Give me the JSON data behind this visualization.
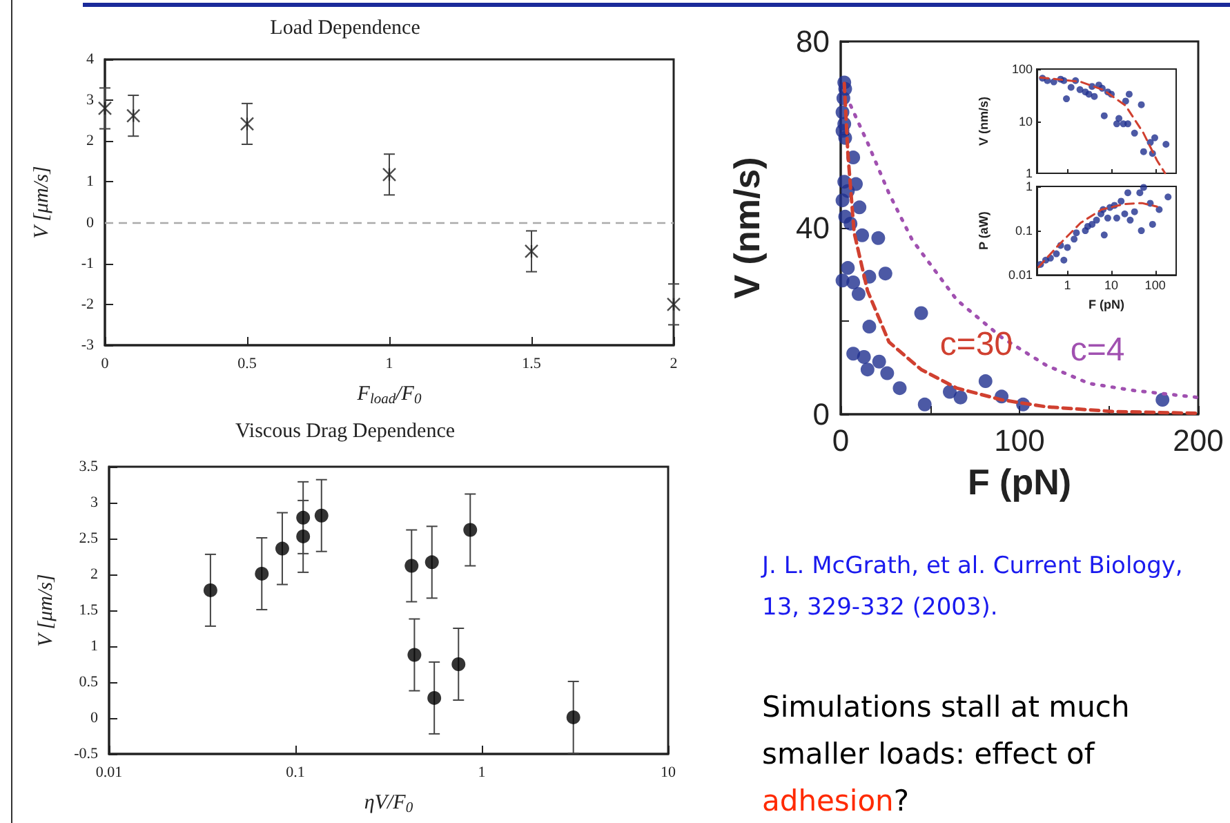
{
  "chart_data": [
    {
      "type": "scatter",
      "title": "Load Dependence",
      "xlabel": "F$_{load}$/F$_{0}$",
      "ylabel": "V [μm/s]",
      "marker": "cross",
      "xlim": [
        0,
        2
      ],
      "xticks": [
        0,
        0.5,
        1,
        1.5,
        2
      ],
      "ylim": [
        -3,
        4
      ],
      "yticks": [
        -3,
        -2,
        -1,
        0,
        1,
        2,
        3,
        4
      ],
      "x": [
        0,
        0.1,
        0.5,
        1,
        1.5,
        2
      ],
      "series": [
        {
          "color": "#222222",
          "values": [
            2.8,
            2.62,
            2.42,
            1.18,
            -0.7,
            -2.0
          ],
          "errors": [
            0.5,
            0.5,
            0.5,
            0.5,
            0.5,
            0.5
          ]
        }
      ],
      "ref_lines": [
        {
          "axis": "y",
          "value": 0,
          "color": "#aaaaaa",
          "line_style": "dashed"
        }
      ]
    },
    {
      "type": "scatter",
      "title": "Viscous Drag Dependence",
      "xlabel": "ηV/F$_{0}$",
      "ylabel": "V [μm/s]",
      "marker": "circle",
      "log": "x",
      "xlim": [
        0.01,
        10
      ],
      "xticks": [
        0.01,
        0.1,
        1,
        10
      ],
      "ylim": [
        -0.5,
        3.5
      ],
      "yticks": [
        -0.5,
        0,
        0.5,
        1,
        1.5,
        2,
        2.5,
        3,
        3.5
      ],
      "x": [
        0.035,
        0.066,
        0.085,
        0.11,
        0.11,
        0.138,
        0.42,
        0.435,
        0.54,
        0.556,
        0.75,
        0.867,
        3.1
      ],
      "series": [
        {
          "color": "#000000",
          "values": [
            1.78,
            2.01,
            2.36,
            2.79,
            2.53,
            2.82,
            2.12,
            0.88,
            2.17,
            0.28,
            0.75,
            2.62,
            0.01
          ],
          "errors": [
            0.5,
            0.5,
            0.5,
            0.5,
            0.5,
            0.5,
            0.5,
            0.5,
            0.5,
            0.5,
            0.5,
            0.5,
            0.5
          ]
        }
      ]
    },
    {
      "type": "scatter",
      "xlabel": "F (pN)",
      "ylabel": "V (nm/s)",
      "marker": "circle",
      "xlim": [
        0,
        200
      ],
      "xticks": [
        0,
        {
          "value": 50,
          "label": null
        },
        100,
        {
          "value": 150,
          "label": null
        },
        200
      ],
      "ylim": [
        0,
        80
      ],
      "yticks": [
        0,
        {
          "value": 20,
          "label": null
        },
        40,
        {
          "value": 60,
          "label": null
        },
        80
      ],
      "series": [
        {
          "color": "#1f2f8f",
          "x": [
            2,
            2.5,
            1.5,
            1,
            2,
            1,
            2.5,
            7,
            2,
            8.5,
            4,
            1,
            10.5,
            2.5,
            5.5,
            12,
            21,
            4,
            25,
            1,
            7,
            16,
            10,
            16,
            45,
            7,
            13,
            15,
            21.5,
            26,
            33,
            47,
            61,
            67,
            81,
            90,
            102,
            180
          ],
          "values": [
            71.2,
            69.8,
            67.8,
            64.8,
            62.3,
            60.8,
            59.3,
            55.1,
            49.9,
            49.4,
            47.9,
            45.9,
            44.4,
            42.4,
            40.9,
            38.4,
            37.8,
            31.4,
            30.2,
            28.7,
            28.3,
            29.5,
            25.8,
            18.8,
            21.7,
            13,
            12.3,
            9.6,
            11.3,
            8.8,
            5.6,
            2.1,
            4.8,
            3.6,
            7.1,
            3.8,
            2.1,
            3.1
          ]
        },
        {
          "type": "line",
          "name": "c=30",
          "color": "#d04030",
          "line_style": "dashed",
          "marker": "none",
          "x": [
            2,
            4,
            7.5,
            15,
            27,
            45,
            65,
            90,
            115,
            152,
            200
          ],
          "values": [
            71,
            56,
            39,
            26.5,
            15.5,
            9.6,
            5.6,
            3.1,
            1.6,
            0.6,
            0.2
          ]
        },
        {
          "type": "line",
          "name": "c=4",
          "color": "#a050b0",
          "line_style": "dotted",
          "marker": "none",
          "x": [
            5.5,
            15,
            27,
            40,
            65,
            90,
            115,
            139,
            164,
            200
          ],
          "values": [
            66.3,
            58.3,
            47.4,
            37.4,
            24.5,
            16.5,
            10.5,
            6.6,
            5.1,
            3.6
          ]
        }
      ],
      "annotations": [
        "J. L. McGrath, et al. Current Biology, 13, 329-332 (2003).",
        "Simulations stall at much smaller loads:  effect of",
        "adhesion",
        "?"
      ]
    },
    {
      "type": "scatter",
      "ylabel": "V (nm/s)",
      "marker": "circle",
      "log": "xy",
      "tick_labels": "y",
      "xlim": [
        0.2,
        300
      ],
      "xticks": [
        1,
        10,
        100
      ],
      "ylim": [
        1,
        100
      ],
      "yticks": [
        1,
        10,
        100
      ],
      "series": [
        {
          "color": "#1f2f8f",
          "x": [
            0.27,
            0.35,
            0.49,
            0.7,
            0.83,
            0.95,
            1.21,
            1.53,
            1.93,
            2.56,
            3.09,
            3.64,
            4.1,
            5.2,
            6.2,
            6.9,
            8.3,
            10,
            13.3,
            14.9,
            18.8,
            21.2,
            23.8,
            25.5,
            33.8,
            48.3,
            54.4,
            77.2,
            86.8,
            97.6,
            176
          ],
          "values": [
            66.8,
            60,
            56.8,
            64,
            60,
            26.9,
            44.6,
            60,
            40.3,
            36.4,
            32.9,
            46.4,
            29.8,
            49.3,
            42.8,
            12.7,
            36.4,
            32.9,
            8.9,
            11.3,
            8.9,
            24.3,
            8.9,
            32.9,
            5.9,
            20.7,
            2.6,
            3.9,
            2.4,
            4.8,
            3.6
          ]
        },
        {
          "type": "line",
          "color": "#d04030",
          "line_style": "dashed",
          "marker": "none",
          "x": [
            0.24,
            2,
            6.5,
            21,
            54,
            110,
            168
          ],
          "values": [
            69,
            56.8,
            40,
            20,
            5.9,
            1.76,
            1
          ]
        }
      ]
    },
    {
      "type": "scatter",
      "xlabel": "F (pN)",
      "ylabel": "P (aW)",
      "marker": "circle",
      "log": "xy",
      "xlim": [
        0.2,
        300
      ],
      "xticks": [
        1,
        10,
        100
      ],
      "ylim": [
        0.01,
        1
      ],
      "yticks": [
        0.01,
        0.1,
        1
      ],
      "series": [
        {
          "color": "#1f2f8f",
          "x": [
            0.244,
            0.32,
            0.41,
            0.56,
            0.7,
            0.83,
            1,
            1.42,
            1.6,
            2.56,
            2.9,
            3.64,
            4.6,
            5.8,
            6.5,
            6.9,
            8.3,
            9.3,
            11.8,
            13.3,
            16.7,
            20.2,
            23.8,
            26.9,
            33.8,
            44.6,
            48.3,
            54.4,
            77,
            87,
            123,
            196
          ],
          "values": [
            0.0173,
            0.0216,
            0.024,
            0.03,
            0.0465,
            0.0216,
            0.0418,
            0.0645,
            0.0897,
            0.1,
            0.125,
            0.139,
            0.173,
            0.24,
            0.3,
            0.08,
            0.193,
            0.334,
            0.373,
            0.193,
            0.464,
            0.24,
            0.72,
            0.173,
            0.268,
            0.72,
            0.1,
            0.95,
            0.416,
            0.139,
            0.3,
            0.578
          ]
        },
        {
          "type": "line",
          "color": "#d04030",
          "line_style": "dashed",
          "marker": "none",
          "x": [
            0.22,
            0.6,
            2,
            6,
            20,
            50,
            110
          ],
          "values": [
            0.015,
            0.045,
            0.15,
            0.3,
            0.4,
            0.42,
            0.35
          ]
        }
      ]
    }
  ]
}
